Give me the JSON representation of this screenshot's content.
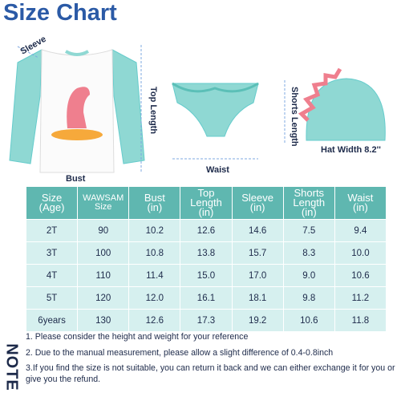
{
  "header": {
    "title": "Size Chart"
  },
  "diagram": {
    "sleeve": "Sleeve",
    "top_length": "Top Length",
    "bust": "Bust",
    "waist": "Waist",
    "shorts_length": "Shorts Length",
    "hat_width": "Hat Width 8.2''"
  },
  "table": {
    "headers": [
      "Size\n(Age)",
      "WAWSAM\nSize",
      "Bust\n(in)",
      "Top\nLength\n(in)",
      "Sleeve\n(in)",
      "Shorts\nLength\n(in)",
      "Waist\n(in)"
    ],
    "rows": [
      [
        "2T",
        "90",
        "10.2",
        "12.6",
        "14.6",
        "7.5",
        "9.4"
      ],
      [
        "3T",
        "100",
        "10.8",
        "13.8",
        "15.7",
        "8.3",
        "10.0"
      ],
      [
        "4T",
        "110",
        "11.4",
        "15.0",
        "17.0",
        "9.0",
        "10.6"
      ],
      [
        "5T",
        "120",
        "12.0",
        "16.1",
        "18.1",
        "9.8",
        "11.2"
      ],
      [
        "6years",
        "130",
        "12.6",
        "17.3",
        "19.2",
        "10.6",
        "11.8"
      ]
    ]
  },
  "note": {
    "label": "NOTE",
    "items": [
      "1. Please consider the height and weight for your reference",
      "2. Due to the manual measurement, please allow a slight difference of 0.4-0.8inch",
      "3.If you find the size is not suitable, you can return it back and we can either exchange it for you or give you the refund."
    ]
  }
}
